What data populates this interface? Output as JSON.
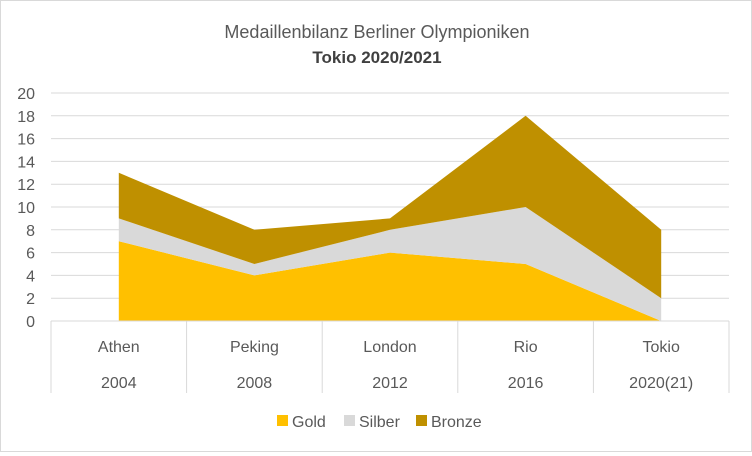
{
  "chart_data": {
    "type": "area",
    "stacked": true,
    "title": "Medaillenbilanz Berliner Olympioniken",
    "subtitle": "Tokio 2020/2021",
    "categories": [
      {
        "city": "Athen",
        "year": "2004"
      },
      {
        "city": "Peking",
        "year": "2008"
      },
      {
        "city": "London",
        "year": "2012"
      },
      {
        "city": "Rio",
        "year": "2016"
      },
      {
        "city": "Tokio",
        "year": "2020(21)"
      }
    ],
    "series": [
      {
        "name": "Gold",
        "color": "#FFC000",
        "values": [
          7,
          4,
          6,
          5,
          0
        ]
      },
      {
        "name": "Silber",
        "color": "#D9D9D9",
        "values": [
          2,
          1,
          2,
          5,
          2
        ]
      },
      {
        "name": "Bronze",
        "color": "#BF9000",
        "values": [
          4,
          3,
          1,
          8,
          6
        ]
      }
    ],
    "yticks": [
      "0",
      "2",
      "4",
      "6",
      "8",
      "10",
      "12",
      "14",
      "16",
      "18",
      "20"
    ],
    "ylim": [
      0,
      20
    ],
    "grid": true,
    "legend_position": "bottom"
  }
}
